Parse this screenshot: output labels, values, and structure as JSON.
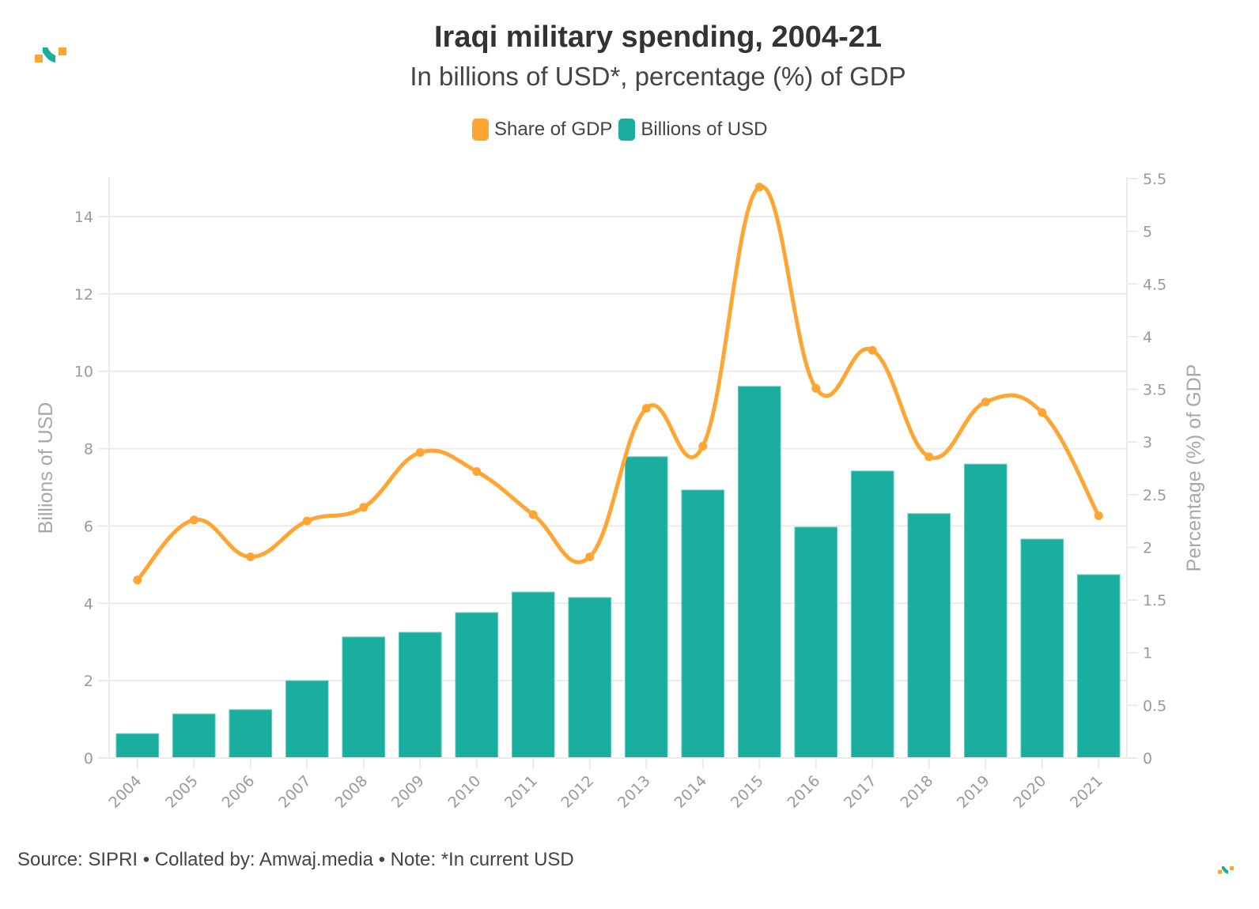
{
  "header": {
    "title": "Iraqi military spending, 2004-21",
    "subtitle": "In billions of USD*, percentage (%) of GDP"
  },
  "legend": [
    {
      "label": "Share of GDP",
      "color": "#ffa533"
    },
    {
      "label": "Billions of USD",
      "color": "#1aae9f"
    }
  ],
  "footer": {
    "text": "Source: SIPRI • Collated by: Amwaj.media • Note: *In current USD"
  },
  "logo": {
    "icon": "amwaj-logo-icon",
    "colors": [
      "#ffa533",
      "#1aae9f"
    ]
  },
  "chart_data": {
    "type": "bar",
    "title": "Iraqi military spending, 2004-21",
    "subtitle": "In billions of USD*, percentage (%) of GDP",
    "categories": [
      "2004",
      "2005",
      "2006",
      "2007",
      "2008",
      "2009",
      "2010",
      "2011",
      "2012",
      "2013",
      "2014",
      "2015",
      "2016",
      "2017",
      "2018",
      "2019",
      "2020",
      "2021"
    ],
    "series": [
      {
        "name": "Billions of USD",
        "type": "bar",
        "axis": "left",
        "color": "#1aae9f",
        "values": [
          0.63,
          1.14,
          1.25,
          2.0,
          3.13,
          3.25,
          3.76,
          4.29,
          4.15,
          7.79,
          6.93,
          9.61,
          5.97,
          7.42,
          6.32,
          7.6,
          5.66,
          4.74
        ]
      },
      {
        "name": "Share of GDP",
        "type": "line",
        "smooth": true,
        "markers": true,
        "axis": "right",
        "color": "#ffa533",
        "values": [
          1.69,
          2.26,
          1.91,
          2.25,
          2.38,
          2.9,
          2.72,
          2.31,
          1.91,
          3.32,
          2.96,
          5.42,
          3.51,
          3.87,
          2.86,
          3.38,
          3.28,
          2.3
        ]
      }
    ],
    "xlabel": "",
    "ylabel": "Billions of USD",
    "y2label": "Percentage (%) of GDP",
    "ylim": [
      0,
      15
    ],
    "y2lim": [
      0,
      5.5
    ],
    "yticks": [
      0,
      2,
      4,
      6,
      8,
      10,
      12,
      14
    ],
    "y2ticks": [
      "0",
      "0.5",
      "1",
      "1.5",
      "2",
      "2.5",
      "3",
      "3.5",
      "4",
      "4.5",
      "5",
      "5.5"
    ],
    "grid": true,
    "legend_position": "top-center",
    "xtick_rotation": -45
  }
}
